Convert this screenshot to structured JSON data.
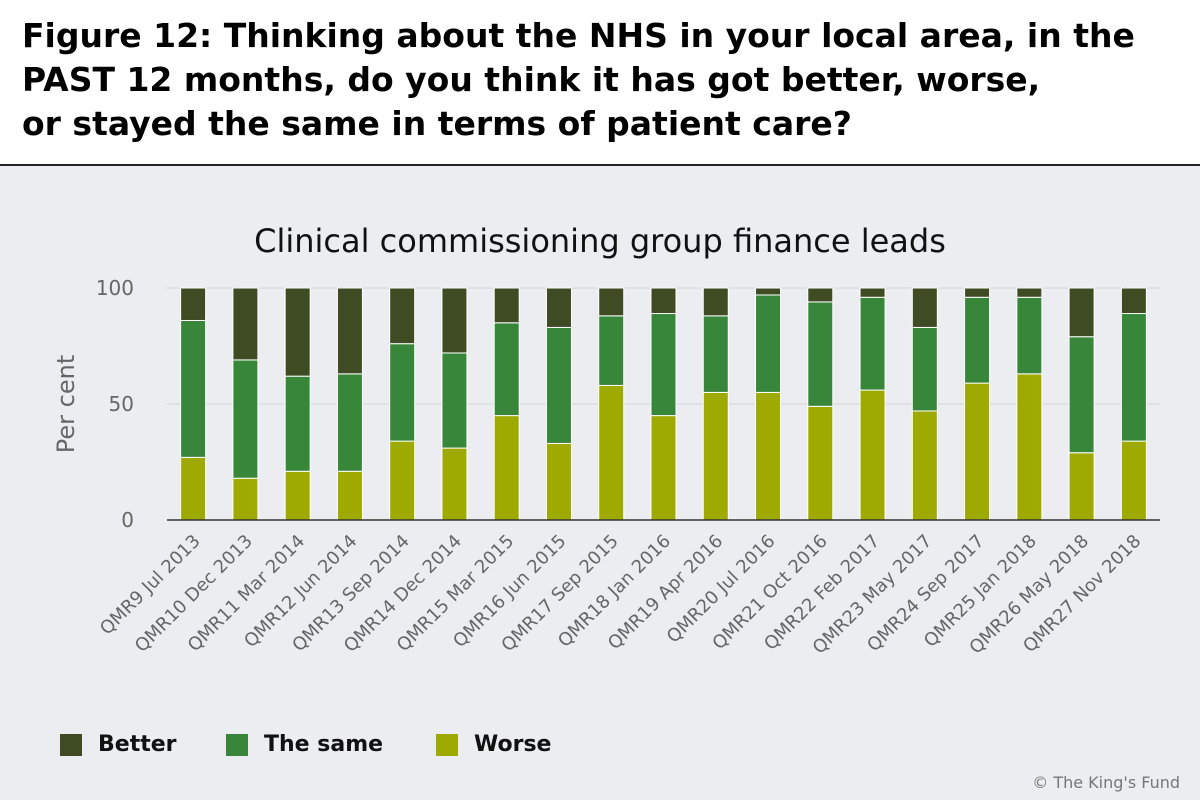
{
  "figure_title": {
    "line1": "Figure 12: Thinking about the NHS in your local area, in the",
    "line2": "PAST 12 months, do you think it has got better, worse,",
    "line3": "or stayed the same in terms of patient care?"
  },
  "copyright": "© The King's Fund",
  "chart_data": {
    "type": "bar",
    "stacked": true,
    "title": "Clinical commissioning group finance leads",
    "xlabel": "",
    "ylabel": "Per cent",
    "ylim": [
      0,
      100
    ],
    "yticks": [
      0,
      50,
      100
    ],
    "grid": true,
    "legend_position": "bottom-left",
    "categories": [
      "QMR9 Jul 2013",
      "QMR10 Dec 2013",
      "QMR11 Mar 2014",
      "QMR12 Jun 2014",
      "QMR13 Sep 2014",
      "QMR14 Dec 2014",
      "QMR15 Mar 2015",
      "QMR16 Jun 2015",
      "QMR17 Sep 2015",
      "QMR18 Jan 2016",
      "QMR19 Apr 2016",
      "QMR20 Jul 2016",
      "QMR21 Oct 2016",
      "QMR22 Feb 2017",
      "QMR23 May 2017",
      "QMR24 Sep 2017",
      "QMR25 Jan 2018",
      "QMR26 May 2018",
      "QMR27 Nov 2018"
    ],
    "series": [
      {
        "name": "Worse",
        "color": "#9eaa00",
        "values": [
          27,
          18,
          21,
          21,
          34,
          31,
          45,
          33,
          58,
          45,
          55,
          55,
          49,
          56,
          47,
          59,
          63,
          29,
          34
        ]
      },
      {
        "name": "The same",
        "color": "#37863a",
        "values": [
          59,
          51,
          41,
          42,
          42,
          41,
          40,
          50,
          30,
          44,
          33,
          42,
          45,
          40,
          36,
          37,
          33,
          50,
          55
        ]
      },
      {
        "name": "Better",
        "color": "#3e4b23",
        "values": [
          14,
          31,
          38,
          37,
          24,
          28,
          15,
          17,
          12,
          11,
          12,
          3,
          6,
          4,
          17,
          4,
          4,
          21,
          11
        ]
      }
    ],
    "legend_order": [
      "Better",
      "The same",
      "Worse"
    ]
  }
}
